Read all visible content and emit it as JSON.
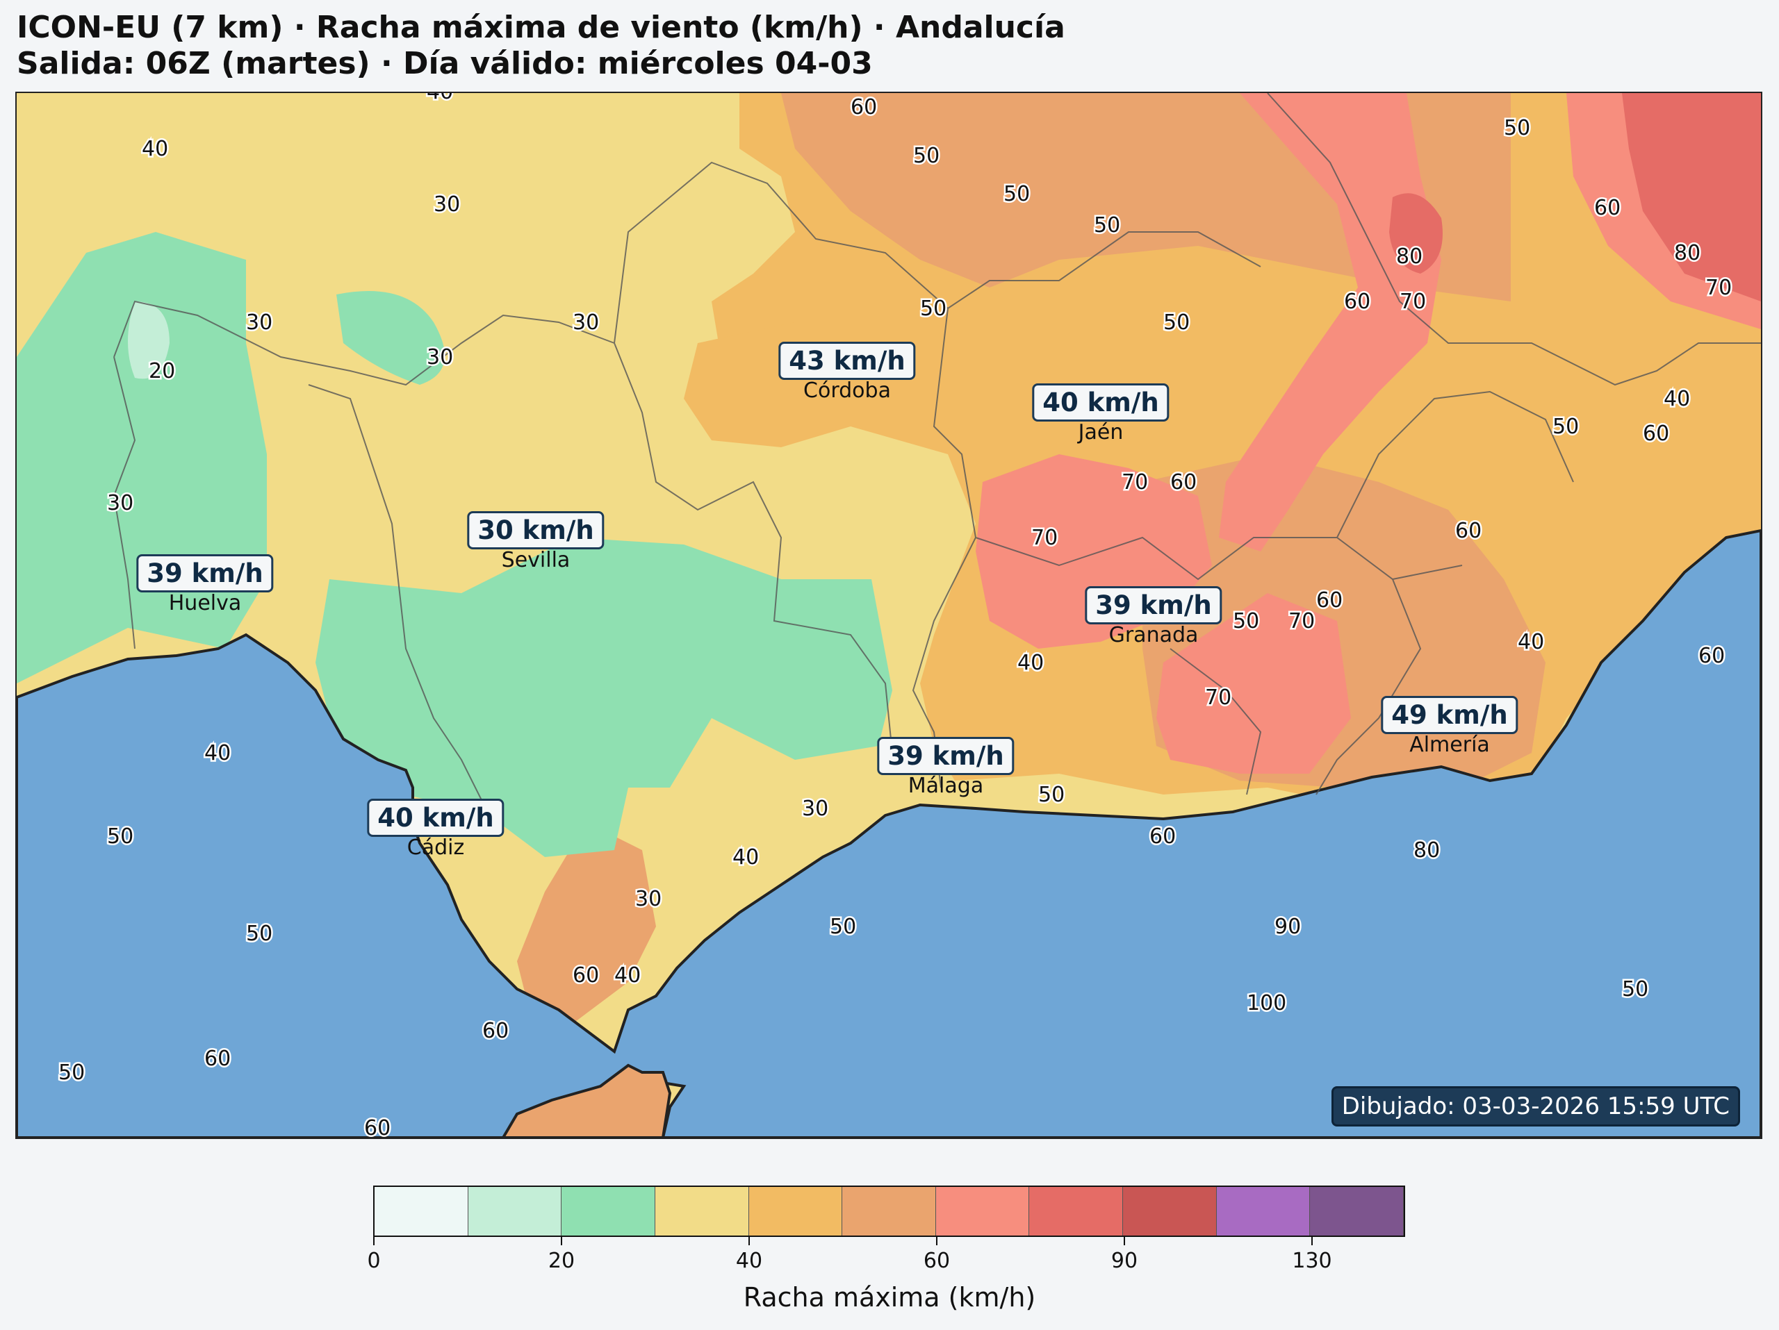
{
  "header": {
    "title_line1": "ICON-EU (7 km) · Racha máxima de viento (km/h) · Andalucía",
    "title_line2": "Salida: 06Z (martes) · Día válido: miércoles 04-03"
  },
  "cities": [
    {
      "name": "Córdoba",
      "value": "43 km/h"
    },
    {
      "name": "Jaén",
      "value": "40 km/h"
    },
    {
      "name": "Sevilla",
      "value": "30 km/h"
    },
    {
      "name": "Huelva",
      "value": "39 km/h"
    },
    {
      "name": "Granada",
      "value": "39 km/h"
    },
    {
      "name": "Almería",
      "value": "49 km/h"
    },
    {
      "name": "Málaga",
      "value": "39 km/h"
    },
    {
      "name": "Cádiz",
      "value": "40 km/h"
    }
  ],
  "contour_labels": [
    "40",
    "40",
    "30",
    "30",
    "30",
    "30",
    "20",
    "30",
    "50",
    "50",
    "50",
    "50",
    "50",
    "60",
    "80",
    "70",
    "60",
    "60",
    "80",
    "70",
    "50",
    "40",
    "60",
    "50",
    "70",
    "60",
    "70",
    "50",
    "60",
    "70",
    "60",
    "40",
    "40",
    "70",
    "50",
    "60",
    "80",
    "90",
    "100",
    "50",
    "40",
    "30",
    "30",
    "40",
    "60",
    "50",
    "60",
    "40",
    "50",
    "50",
    "60",
    "60",
    "50",
    "60"
  ],
  "stamp": "Dibujado: 03-03-2026 15:59 UTC",
  "colorbar": {
    "label": "Racha máxima (km/h)",
    "colors": [
      "#eef8f6",
      "#c4eed7",
      "#8fe0b1",
      "#f2dc88",
      "#f2bb63",
      "#eaa46e",
      "#f78e7e",
      "#e56c66",
      "#c95654",
      "#a86bc2",
      "#7d558e"
    ],
    "tick_labels": [
      "0",
      "20",
      "40",
      "60",
      "90",
      "130"
    ]
  },
  "colors": {
    "sea": "#6fa6d6",
    "green": "#8fe0b1",
    "yellow": "#f2dc88",
    "orange": "#f2bb63",
    "dark_orange": "#eaa46e",
    "red": "#f78e7e",
    "dark_red": "#e56c66"
  }
}
